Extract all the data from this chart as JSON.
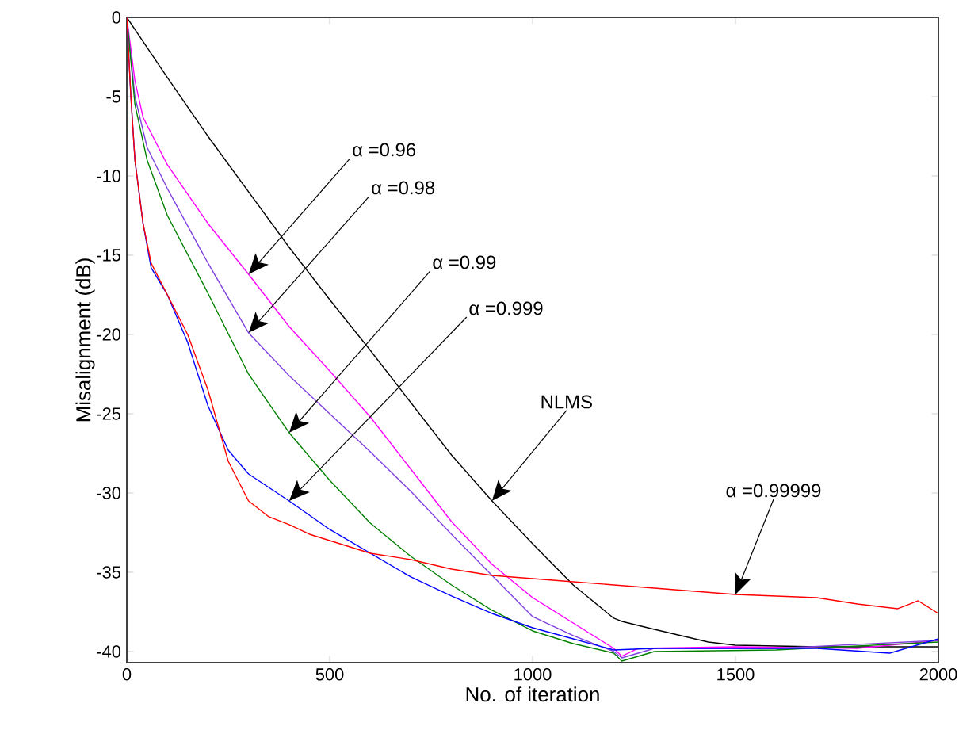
{
  "chart_data": {
    "type": "line",
    "xlabel": "No. of iteration",
    "ylabel": "Misalignment (dB)",
    "xlim": [
      0,
      2000
    ],
    "ylim": [
      -40.7,
      0
    ],
    "xticks": [
      0,
      500,
      1000,
      1500,
      2000
    ],
    "yticks": [
      -40,
      -35,
      -30,
      -25,
      -20,
      -15,
      -10,
      -5,
      0
    ],
    "series": [
      {
        "color": "#000000",
        "x": [
          0,
          100,
          200,
          300,
          400,
          500,
          600,
          700,
          800,
          900,
          1000,
          1100,
          1200,
          1220,
          1300,
          1433,
          1500,
          1700,
          2000
        ],
        "values": [
          0,
          -3.8,
          -7.5,
          -11,
          -14.5,
          -17.8,
          -21,
          -24.3,
          -27.6,
          -30.5,
          -33.2,
          -35.8,
          -37.9,
          -38.1,
          -38.6,
          -39.4,
          -39.6,
          -39.7,
          -39.7
        ]
      },
      {
        "color": "#ff00ff",
        "x": [
          0,
          20,
          40,
          100,
          200,
          300,
          400,
          500,
          600,
          700,
          800,
          900,
          1000,
          1100,
          1200,
          1220,
          1260,
          1500,
          1800,
          2000
        ],
        "values": [
          0,
          -4,
          -6.3,
          -9.3,
          -13,
          -16.2,
          -19.5,
          -22.3,
          -25.2,
          -28.5,
          -31.8,
          -34.5,
          -36.6,
          -38.2,
          -39.8,
          -40.3,
          -39.8,
          -39.7,
          -39.8,
          -39.3
        ]
      },
      {
        "color": "#8040e0",
        "x": [
          0,
          20,
          50,
          100,
          200,
          300,
          400,
          500,
          600,
          700,
          800,
          900,
          1000,
          1100,
          1200,
          1220,
          1300,
          1600,
          2000
        ],
        "values": [
          0,
          -5,
          -8.2,
          -10.8,
          -15.5,
          -19.9,
          -22.6,
          -25,
          -27.4,
          -29.9,
          -32.6,
          -35.2,
          -37.8,
          -39,
          -40,
          -40.4,
          -39.8,
          -39.8,
          -39.3
        ]
      },
      {
        "color": "#008000",
        "x": [
          0,
          20,
          50,
          100,
          200,
          300,
          400,
          500,
          600,
          700,
          800,
          900,
          1000,
          1100,
          1200,
          1220,
          1300,
          1600,
          2000
        ],
        "values": [
          0,
          -5.5,
          -9,
          -12.5,
          -17.4,
          -22.5,
          -26.2,
          -29.2,
          -31.9,
          -34,
          -35.8,
          -37.4,
          -38.7,
          -39.5,
          -40.1,
          -40.6,
          -40,
          -39.9,
          -39.4
        ]
      },
      {
        "color": "#0000ff",
        "x": [
          0,
          10,
          20,
          40,
          60,
          100,
          150,
          200,
          250,
          300,
          400,
          500,
          600,
          700,
          800,
          900,
          1000,
          1100,
          1200,
          1300,
          1500,
          1700,
          1880,
          2000
        ],
        "values": [
          0,
          -5,
          -9,
          -13,
          -15.8,
          -17.5,
          -20.5,
          -24.5,
          -27.3,
          -28.8,
          -30.5,
          -32.3,
          -33.8,
          -35.3,
          -36.5,
          -37.6,
          -38.5,
          -39.2,
          -39.9,
          -39.8,
          -39.8,
          -39.8,
          -40.1,
          -39.2
        ]
      },
      {
        "color": "#ff0000",
        "x": [
          0,
          10,
          20,
          40,
          60,
          100,
          150,
          200,
          250,
          300,
          350,
          400,
          450,
          500,
          600,
          700,
          800,
          900,
          1000,
          1100,
          1200,
          1300,
          1400,
          1500,
          1600,
          1700,
          1800,
          1900,
          1950,
          2000
        ],
        "values": [
          0,
          -5,
          -9,
          -13,
          -15.5,
          -17.5,
          -20,
          -23.5,
          -28,
          -30.5,
          -31.5,
          -32,
          -32.6,
          -33,
          -33.8,
          -34.2,
          -34.8,
          -35.2,
          -35.4,
          -35.6,
          -35.8,
          -36,
          -36.2,
          -36.4,
          -36.5,
          -36.6,
          -37,
          -37.3,
          -36.8,
          -37.6
        ]
      }
    ],
    "annotations": [
      "α =0.96",
      "α =0.98",
      "α =0.99",
      "α =0.999",
      "NLMS",
      "α =0.99999"
    ]
  }
}
